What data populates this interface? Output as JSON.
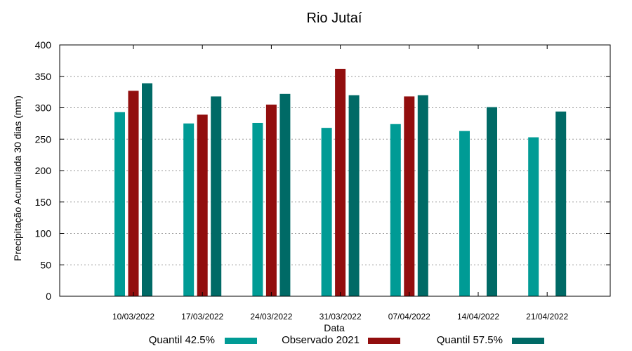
{
  "chart_data": {
    "type": "bar",
    "title": "Rio Jutaí",
    "xlabel": "Data",
    "ylabel": "Precipitação Acumulada 30 dias (mm)",
    "ylim": [
      0,
      400
    ],
    "yticks": [
      0,
      50,
      100,
      150,
      200,
      250,
      300,
      350,
      400
    ],
    "grid": true,
    "legend_position": "bottom",
    "categories": [
      "10/03/2022",
      "17/03/2022",
      "24/03/2022",
      "31/03/2022",
      "07/04/2022",
      "14/04/2022",
      "21/04/2022"
    ],
    "series": [
      {
        "name": "Quantil 42.5%",
        "color": "#009b95",
        "values": [
          293,
          275,
          276,
          268,
          274,
          263,
          253
        ]
      },
      {
        "name": "Observado 2021",
        "color": "#920e0e",
        "values": [
          327,
          289,
          305,
          362,
          318,
          null,
          null
        ]
      },
      {
        "name": "Quantil 57.5%",
        "color": "#006a66",
        "values": [
          339,
          318,
          322,
          320,
          320,
          301,
          294
        ]
      }
    ]
  }
}
